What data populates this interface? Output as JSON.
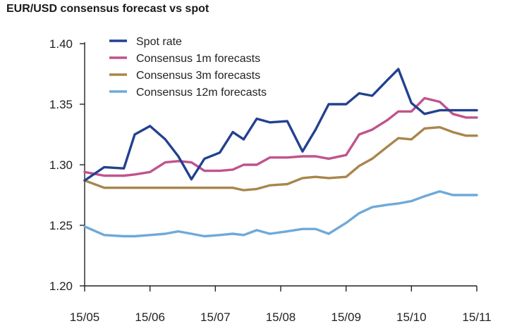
{
  "chart_data": {
    "type": "line",
    "title": "EUR/USD consensus forecast vs spot",
    "xlabel": "",
    "ylabel": "",
    "ylim": [
      1.2,
      1.4
    ],
    "yticks": [
      1.2,
      1.25,
      1.3,
      1.35,
      1.4
    ],
    "ytick_labels": [
      "1.20",
      "1.25",
      "1.30",
      "1.35",
      "1.40"
    ],
    "xlim": [
      0,
      18
    ],
    "xticks": [
      0,
      3,
      6,
      9,
      12,
      15,
      18
    ],
    "xtick_labels": [
      "15/05",
      "15/06",
      "15/07",
      "15/08",
      "15/09",
      "15/10",
      "15/11"
    ],
    "grid": false,
    "legend_position": "top-left",
    "x": [
      0,
      0.9,
      1.8,
      2.3,
      3.0,
      3.7,
      4.3,
      4.9,
      5.5,
      6.2,
      6.8,
      7.3,
      7.9,
      8.5,
      9.3,
      10.0,
      10.6,
      11.2,
      12.0,
      12.6,
      13.2,
      13.9,
      14.4,
      15.0,
      15.6,
      16.3,
      16.9,
      17.5,
      18.0
    ],
    "series": [
      {
        "name": "Spot rate",
        "color": "#22418f",
        "values": [
          1.287,
          1.298,
          1.297,
          1.325,
          1.332,
          1.321,
          1.307,
          1.288,
          1.305,
          1.31,
          1.327,
          1.321,
          1.338,
          1.335,
          1.336,
          1.311,
          1.329,
          1.35,
          1.35,
          1.359,
          1.357,
          1.37,
          1.379,
          1.351,
          1.342,
          1.345,
          1.345,
          1.345,
          1.345
        ]
      },
      {
        "name": "Consensus 1m forecasts",
        "color": "#c0538c",
        "values": [
          1.294,
          1.291,
          1.291,
          1.292,
          1.294,
          1.302,
          1.303,
          1.302,
          1.295,
          1.295,
          1.296,
          1.3,
          1.3,
          1.306,
          1.306,
          1.307,
          1.307,
          1.305,
          1.308,
          1.325,
          1.329,
          1.337,
          1.344,
          1.344,
          1.355,
          1.352,
          1.342,
          1.339,
          1.339
        ]
      },
      {
        "name": "Consensus 3m forecasts",
        "color": "#a8864c",
        "values": [
          1.287,
          1.281,
          1.281,
          1.281,
          1.281,
          1.281,
          1.281,
          1.281,
          1.281,
          1.281,
          1.281,
          1.279,
          1.28,
          1.283,
          1.284,
          1.289,
          1.29,
          1.289,
          1.29,
          1.299,
          1.305,
          1.315,
          1.322,
          1.321,
          1.33,
          1.331,
          1.327,
          1.324,
          1.324
        ]
      },
      {
        "name": "Consensus 12m forecasts",
        "color": "#6fa9d8",
        "values": [
          1.249,
          1.242,
          1.241,
          1.241,
          1.242,
          1.243,
          1.245,
          1.243,
          1.241,
          1.242,
          1.243,
          1.242,
          1.246,
          1.243,
          1.245,
          1.247,
          1.247,
          1.243,
          1.252,
          1.26,
          1.265,
          1.267,
          1.268,
          1.27,
          1.274,
          1.278,
          1.275,
          1.275,
          1.275
        ]
      }
    ]
  }
}
